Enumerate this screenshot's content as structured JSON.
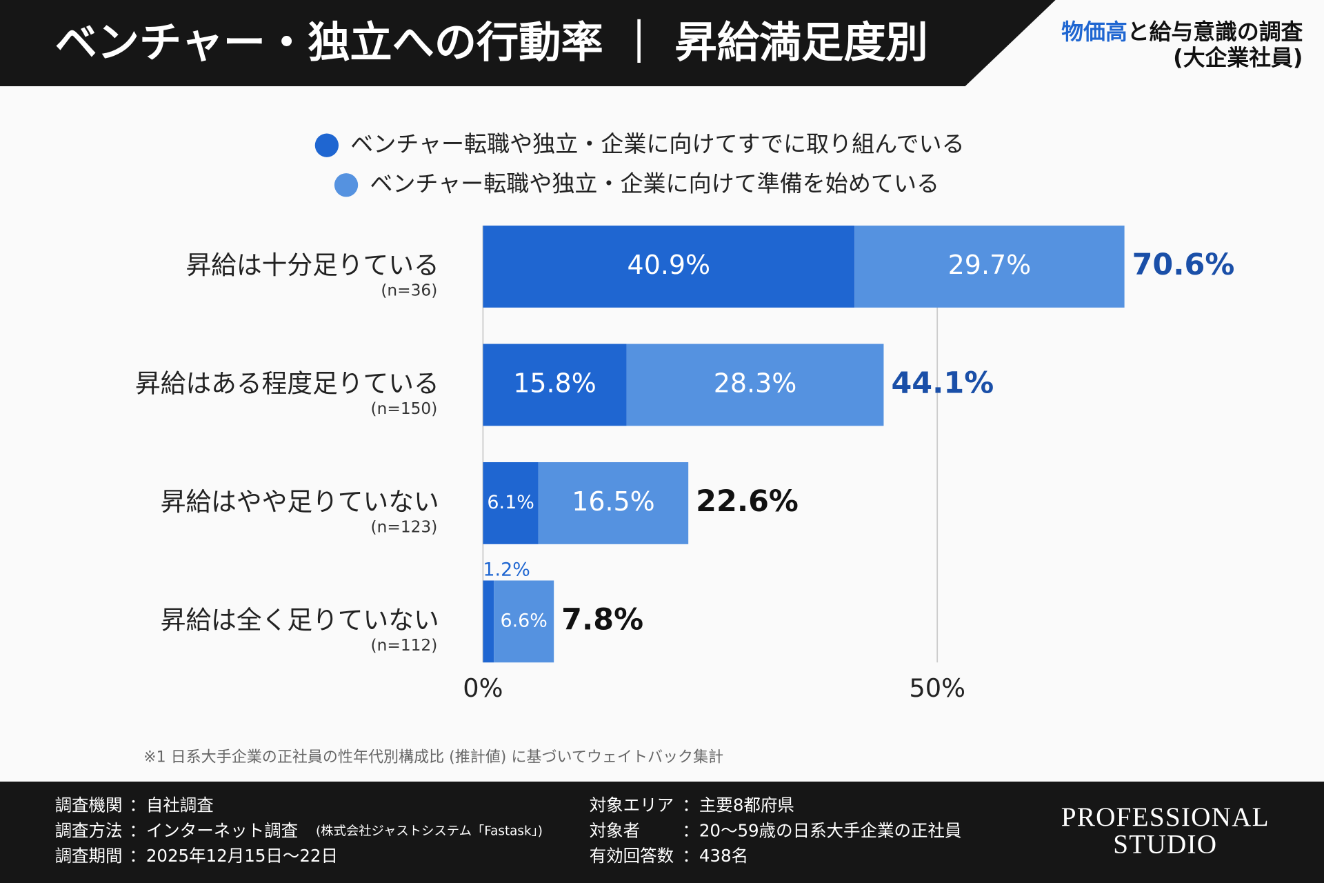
{
  "header": {
    "title": "ベンチャー・独立への行動率 ｜ 昇給満足度別",
    "tag_highlight": "物価高",
    "tag_rest": "と給与意識の調査",
    "tag_sub": "(大企業社員)"
  },
  "chart_data": {
    "type": "stacked-bar-horizontal",
    "categories": [
      "昇給は十分足りている",
      "昇給はある程度足りている",
      "昇給はやや足りていない",
      "昇給は全く足りていない"
    ],
    "category_notes": [
      "(n=36)",
      "(n=150)",
      "(n=123)",
      "(n=112)"
    ],
    "series": [
      {
        "name": "ベンチャー転職や独立・企業に向けてすでに取り組んでいる",
        "color": "#1f66d1",
        "values": [
          40.9,
          15.8,
          6.1,
          1.2
        ],
        "value_labels": [
          "40.9%",
          "15.8%",
          "6.1%",
          "1.2%"
        ]
      },
      {
        "name": "ベンチャー転職や独立・企業に向けて準備を始めている",
        "color": "#5592e0",
        "values": [
          29.7,
          28.3,
          16.5,
          6.6
        ],
        "value_labels": [
          "29.7%",
          "28.3%",
          "16.5%",
          "6.6%"
        ]
      }
    ],
    "totals": [
      70.6,
      44.1,
      22.6,
      7.8
    ],
    "total_labels": [
      "70.6%",
      "44.1%",
      "22.6%",
      "7.8%"
    ],
    "total_colors": [
      "#1a4fa8",
      "#1a4fa8",
      "#111111",
      "#111111"
    ],
    "xlim": [
      0,
      80
    ],
    "xticks": [
      {
        "value": 0,
        "label": "0%"
      },
      {
        "value": 50,
        "label": "50%"
      }
    ],
    "grid": true
  },
  "footnote": "※1 日系大手企業の正社員の性年代別構成比 (推計値) に基づいてウェイトバック集計",
  "footer": {
    "left": [
      {
        "label": "調査機関",
        "value": "：自社調査"
      },
      {
        "label": "調査方法",
        "value": "：インターネット調査",
        "note": "(株式会社ジャストシステム「Fastask」)"
      },
      {
        "label": "調査期間",
        "value": "：2025年12月15日〜22日"
      }
    ],
    "middle": [
      {
        "label": "対象エリア",
        "value": "：主要8都府県"
      },
      {
        "label": "対象者",
        "value": "：20〜59歳の日系大手企業の正社員"
      },
      {
        "label": "有効回答数",
        "value": "：438名"
      }
    ],
    "logo": [
      "PROFESSIONAL",
      "STUDIO"
    ]
  }
}
